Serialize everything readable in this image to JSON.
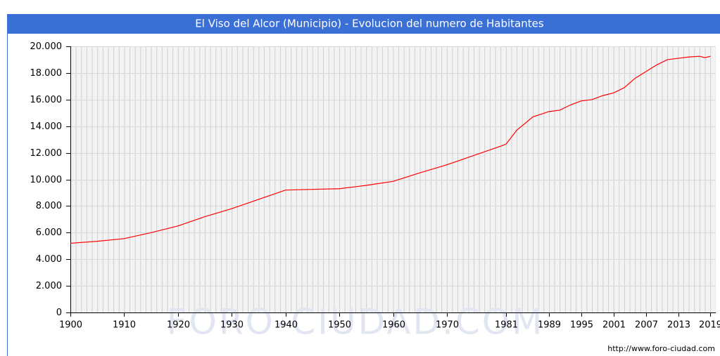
{
  "chart_data": {
    "type": "line",
    "title": "El Viso del Alcor (Municipio) - Evolucion del numero de Habitantes",
    "watermark": "FORO-CIUDAD.COM",
    "source": "http://www.foro-ciudad.com",
    "x": [
      1900,
      1905,
      1910,
      1915,
      1920,
      1925,
      1930,
      1935,
      1940,
      1945,
      1950,
      1955,
      1960,
      1965,
      1970,
      1975,
      1980,
      1981,
      1983,
      1986,
      1989,
      1991,
      1993,
      1995,
      1997,
      1999,
      2001,
      2003,
      2005,
      2007,
      2009,
      2011,
      2013,
      2015,
      2017,
      2018,
      2019
    ],
    "series": [
      {
        "name": "Habitantes",
        "color": "#ff0000",
        "values": [
          5200,
          5350,
          5550,
          6000,
          6500,
          7200,
          7800,
          8500,
          9200,
          9250,
          9300,
          9550,
          9850,
          10500,
          11100,
          11800,
          12500,
          12650,
          13700,
          14700,
          15100,
          15200,
          15600,
          15900,
          16000,
          16300,
          16500,
          16900,
          17600,
          18100,
          18600,
          19000,
          19100,
          19200,
          19250,
          19150,
          19250
        ]
      }
    ],
    "xlim": [
      1900,
      2020
    ],
    "xticks": [
      1900,
      1910,
      1920,
      1930,
      1940,
      1950,
      1960,
      1970,
      1981,
      1989,
      1995,
      2001,
      2007,
      2013,
      {
        "value": 2019,
        "label": "2019"
      }
    ],
    "ylim": [
      0,
      20000
    ],
    "yticks": [
      {
        "value": 0,
        "label": "0"
      },
      {
        "value": 2000,
        "label": "2.000"
      },
      {
        "value": 4000,
        "label": "4.000"
      },
      {
        "value": 6000,
        "label": "6.000"
      },
      {
        "value": 8000,
        "label": "8.000"
      },
      {
        "value": 10000,
        "label": "10.000"
      },
      {
        "value": 12000,
        "label": "12.000"
      },
      {
        "value": 14000,
        "label": "14.000"
      },
      {
        "value": 16000,
        "label": "16.000"
      },
      {
        "value": 18000,
        "label": "18.000"
      },
      {
        "value": 20000,
        "label": "20.000"
      }
    ],
    "grid": true
  }
}
